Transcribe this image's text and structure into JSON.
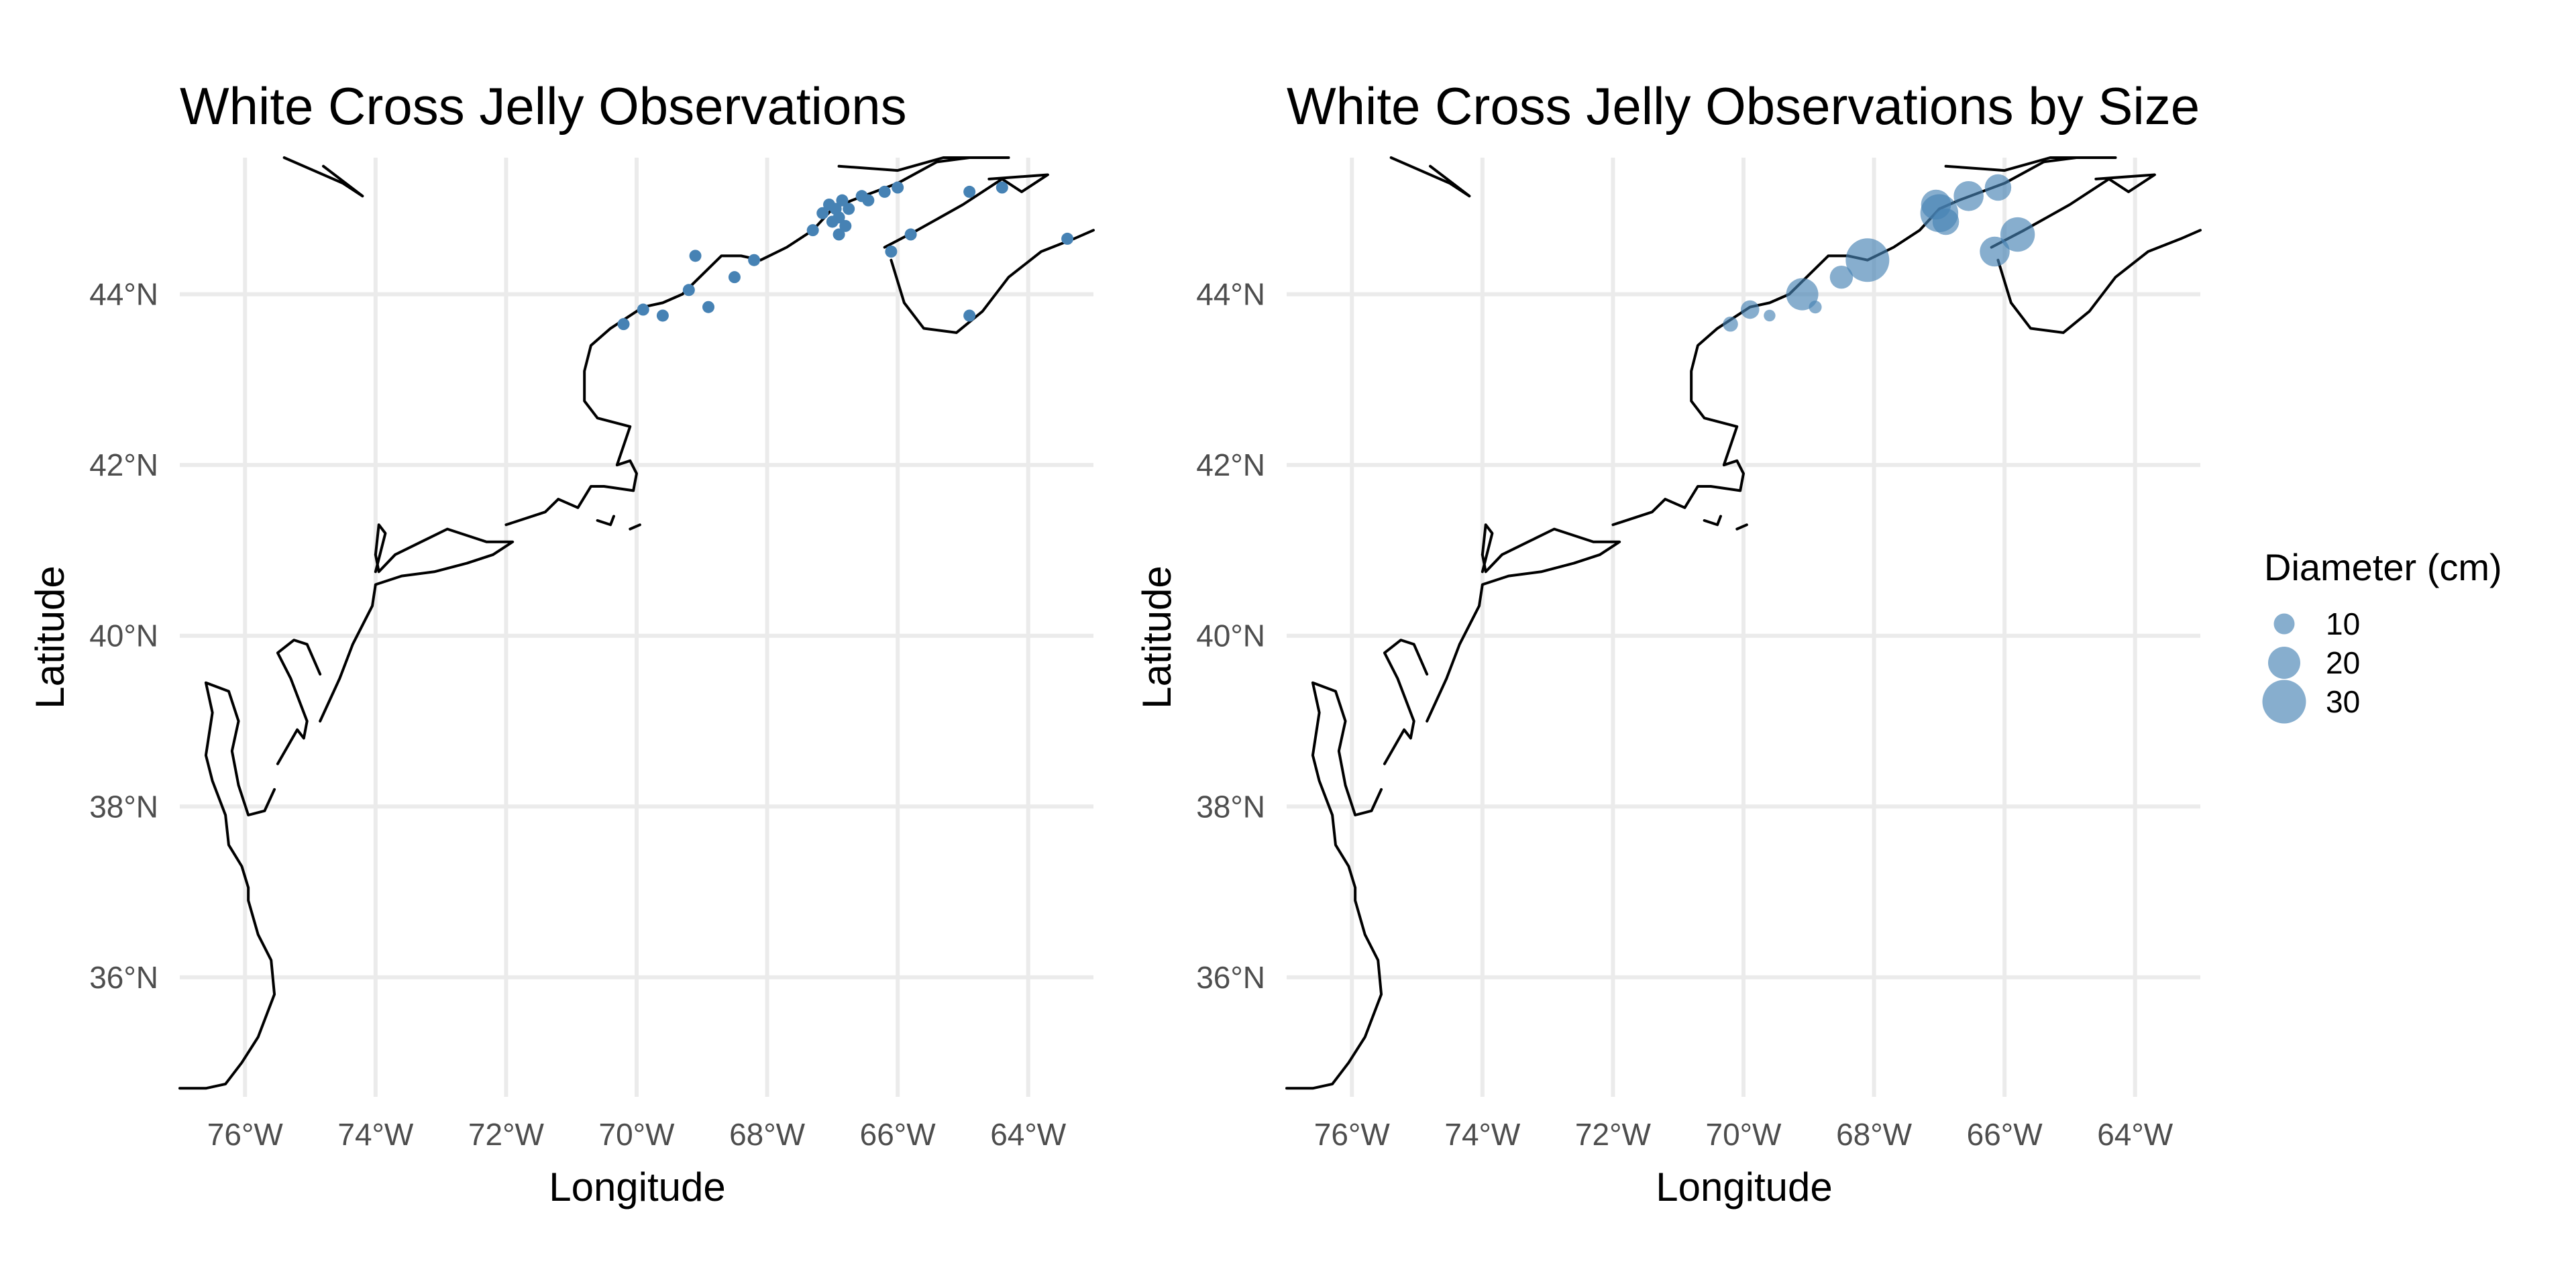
{
  "chart_data": [
    {
      "type": "scatter",
      "title": "White Cross Jelly Observations",
      "xlabel": "Longitude",
      "ylabel": "Latitude",
      "xlim": [
        -77.0,
        -63.0
      ],
      "ylim": [
        34.6,
        45.6
      ],
      "x_ticks": [
        {
          "value": -76,
          "label": "76°W"
        },
        {
          "value": -74,
          "label": "74°W"
        },
        {
          "value": -72,
          "label": "72°W"
        },
        {
          "value": -70,
          "label": "70°W"
        },
        {
          "value": -68,
          "label": "68°W"
        },
        {
          "value": -66,
          "label": "66°W"
        },
        {
          "value": -64,
          "label": "64°W"
        }
      ],
      "y_ticks": [
        {
          "value": 36,
          "label": "36°N"
        },
        {
          "value": 38,
          "label": "38°N"
        },
        {
          "value": 40,
          "label": "40°N"
        },
        {
          "value": 42,
          "label": "42°N"
        },
        {
          "value": 44,
          "label": "44°N"
        }
      ],
      "grid": true,
      "point_color": "#4682b4",
      "points": [
        {
          "lon": -70.2,
          "lat": 43.65
        },
        {
          "lon": -69.9,
          "lat": 43.82
        },
        {
          "lon": -69.6,
          "lat": 43.75
        },
        {
          "lon": -69.2,
          "lat": 44.05
        },
        {
          "lon": -69.1,
          "lat": 44.45
        },
        {
          "lon": -68.9,
          "lat": 43.85
        },
        {
          "lon": -68.5,
          "lat": 44.2
        },
        {
          "lon": -68.2,
          "lat": 44.4
        },
        {
          "lon": -67.3,
          "lat": 44.75
        },
        {
          "lon": -67.15,
          "lat": 44.95
        },
        {
          "lon": -67.05,
          "lat": 45.05
        },
        {
          "lon": -67.0,
          "lat": 44.85
        },
        {
          "lon": -66.95,
          "lat": 45.0
        },
        {
          "lon": -66.9,
          "lat": 44.9
        },
        {
          "lon": -66.85,
          "lat": 45.1
        },
        {
          "lon": -66.9,
          "lat": 44.7
        },
        {
          "lon": -66.8,
          "lat": 44.8
        },
        {
          "lon": -66.75,
          "lat": 45.0
        },
        {
          "lon": -66.55,
          "lat": 45.15
        },
        {
          "lon": -66.45,
          "lat": 45.1
        },
        {
          "lon": -66.2,
          "lat": 45.2
        },
        {
          "lon": -66.0,
          "lat": 45.25
        },
        {
          "lon": -66.1,
          "lat": 44.5
        },
        {
          "lon": -65.8,
          "lat": 44.7
        },
        {
          "lon": -64.9,
          "lat": 45.2
        },
        {
          "lon": -64.4,
          "lat": 45.25
        },
        {
          "lon": -64.9,
          "lat": 43.75
        },
        {
          "lon": -63.4,
          "lat": 44.65
        }
      ]
    },
    {
      "type": "scatter",
      "title": "White Cross Jelly Observations by Size",
      "xlabel": "Longitude",
      "ylabel": "Latitude",
      "xlim": [
        -77.0,
        -63.0
      ],
      "ylim": [
        34.6,
        45.6
      ],
      "x_ticks": [
        {
          "value": -76,
          "label": "76°W"
        },
        {
          "value": -74,
          "label": "74°W"
        },
        {
          "value": -72,
          "label": "72°W"
        },
        {
          "value": -70,
          "label": "70°W"
        },
        {
          "value": -68,
          "label": "68°W"
        },
        {
          "value": -66,
          "label": "66°W"
        },
        {
          "value": -64,
          "label": "64°W"
        }
      ],
      "y_ticks": [
        {
          "value": 36,
          "label": "36°N"
        },
        {
          "value": 38,
          "label": "38°N"
        },
        {
          "value": 40,
          "label": "40°N"
        },
        {
          "value": 42,
          "label": "42°N"
        },
        {
          "value": 44,
          "label": "44°N"
        }
      ],
      "grid": true,
      "point_color": "#4682b4",
      "point_opacity": 0.65,
      "legend": {
        "title": "Diameter (cm)",
        "placement": "right",
        "entries": [
          {
            "label": "10",
            "size": 10
          },
          {
            "label": "20",
            "size": 20
          },
          {
            "label": "30",
            "size": 30
          }
        ]
      },
      "points": [
        {
          "lon": -70.2,
          "lat": 43.65,
          "diameter": 5
        },
        {
          "lon": -69.9,
          "lat": 43.82,
          "diameter": 8
        },
        {
          "lon": -69.6,
          "lat": 43.75,
          "diameter": 2
        },
        {
          "lon": -69.1,
          "lat": 44.0,
          "diameter": 20
        },
        {
          "lon": -68.9,
          "lat": 43.85,
          "diameter": 3
        },
        {
          "lon": -68.5,
          "lat": 44.2,
          "diameter": 12
        },
        {
          "lon": -68.1,
          "lat": 44.4,
          "diameter": 30
        },
        {
          "lon": -67.0,
          "lat": 44.95,
          "diameter": 25
        },
        {
          "lon": -67.05,
          "lat": 45.05,
          "diameter": 18
        },
        {
          "lon": -66.9,
          "lat": 44.85,
          "diameter": 15
        },
        {
          "lon": -66.55,
          "lat": 45.15,
          "diameter": 18
        },
        {
          "lon": -66.1,
          "lat": 45.25,
          "diameter": 15
        },
        {
          "lon": -66.15,
          "lat": 44.5,
          "diameter": 18
        },
        {
          "lon": -65.8,
          "lat": 44.7,
          "diameter": 22
        }
      ]
    }
  ]
}
